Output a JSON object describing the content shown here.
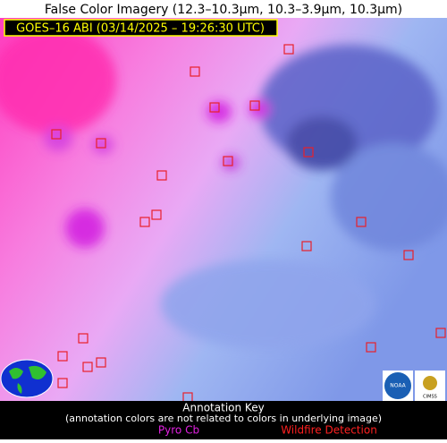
{
  "header": {
    "title": "False Color Imagery (12.3–10.3µm, 10.3–3.9µm, 10.3µm)",
    "subtitle": "GOES–16 ABI (03/14/2025 – 19:26:30 UTC)"
  },
  "legend": {
    "title": "Annotation Key",
    "note": "(annotation colors are not related to colors in underlying image)",
    "items": [
      "Pyro Cb",
      "Wildfire Detection"
    ]
  },
  "logos": {
    "noaa": "NOAA",
    "cimss": "CIMSS"
  }
}
